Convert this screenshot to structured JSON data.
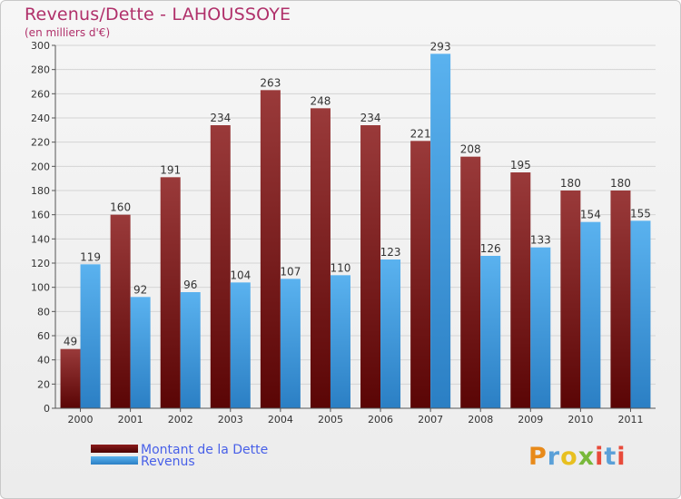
{
  "header": {
    "title": "Revenus/Dette - LAHOUSSOYE",
    "subtitle": "(en milliers d'€)"
  },
  "legend": {
    "debt_label": "Montant de la Dette",
    "revenue_label": "Revenus"
  },
  "logo": {
    "text": "Proxiti"
  },
  "colors": {
    "debt": "#8b1a1a",
    "revenue": "#3d9ee5",
    "title": "#b0306a",
    "legend_text": "#4860e8"
  },
  "chart_data": {
    "type": "bar",
    "title": "Revenus/Dette - LAHOUSSOYE",
    "ylabel": "(en milliers d'€)",
    "xlabel": "",
    "categories": [
      "2000",
      "2001",
      "2002",
      "2003",
      "2004",
      "2005",
      "2006",
      "2007",
      "2008",
      "2009",
      "2010",
      "2011"
    ],
    "series": [
      {
        "name": "Montant de la Dette",
        "values": [
          49,
          160,
          191,
          234,
          263,
          248,
          234,
          221,
          208,
          195,
          180,
          180
        ]
      },
      {
        "name": "Revenus",
        "values": [
          119,
          92,
          96,
          104,
          107,
          110,
          123,
          293,
          126,
          133,
          154,
          155
        ]
      }
    ],
    "ylim": [
      0,
      300
    ],
    "yticks": [
      0,
      20,
      40,
      60,
      80,
      100,
      120,
      140,
      160,
      180,
      200,
      220,
      240,
      260,
      280,
      300
    ],
    "grid": true,
    "legend_position": "bottom-left"
  }
}
